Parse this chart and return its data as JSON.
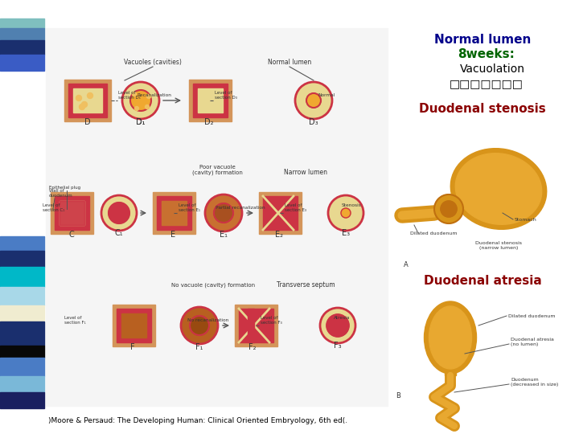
{
  "background_color": "#ffffff",
  "title_line1": "Normal lumen",
  "title_line2": "8weeks:",
  "title_line3": "Vacuolation",
  "title_line4": "□□□□□□□",
  "label2": "Duodenal stenosis",
  "label3": "Duodenal atresia",
  "citation": ")Moore & Persaud: The Developing Human: Clinical Oriented Embryology, 6th ed(.",
  "title_color": "#00008B",
  "title2_color": "#006400",
  "title34_color": "#000000",
  "label_color": "#8B0000",
  "citation_color": "#000000",
  "left_bar_top": [
    [
      "#7fbfbf",
      0,
      505,
      55,
      12
    ],
    [
      "#5080b0",
      0,
      490,
      55,
      15
    ],
    [
      "#1a2f6e",
      0,
      472,
      55,
      18
    ],
    [
      "#3a5cc5",
      0,
      452,
      55,
      20
    ]
  ],
  "left_bar_bottom": [
    [
      "#4a7cc5",
      0,
      228,
      55,
      18
    ],
    [
      "#1a2f6e",
      0,
      208,
      55,
      20
    ],
    [
      "#00b8c8",
      0,
      183,
      55,
      25
    ],
    [
      "#a8d8e8",
      0,
      160,
      55,
      23
    ],
    [
      "#f0ecd0",
      0,
      140,
      55,
      20
    ],
    [
      "#1a2f6e",
      0,
      110,
      55,
      30
    ],
    [
      "#080808",
      0,
      95,
      55,
      15
    ],
    [
      "#4a7cc5",
      0,
      72,
      55,
      23
    ],
    [
      "#7ab8d8",
      0,
      52,
      55,
      20
    ],
    [
      "#1a2060",
      0,
      32,
      55,
      20
    ]
  ]
}
